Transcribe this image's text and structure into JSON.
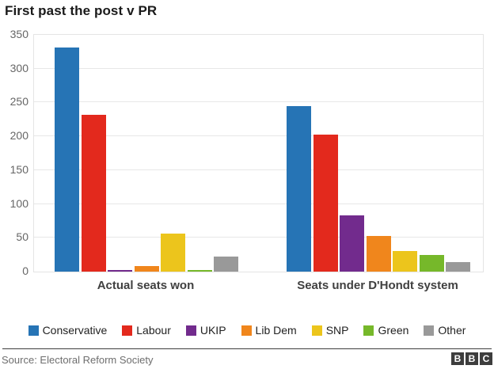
{
  "title": "First past the post v PR",
  "chart_data": {
    "type": "bar",
    "title": "First past the post v PR",
    "categories": [
      "Actual seats won",
      "Seats under D'Hondt system"
    ],
    "series": [
      {
        "name": "Conservative",
        "color": "#2674b5",
        "values": [
          331,
          245
        ]
      },
      {
        "name": "Labour",
        "color": "#e3291d",
        "values": [
          232,
          202
        ]
      },
      {
        "name": "UKIP",
        "color": "#722b8d",
        "values": [
          1,
          83
        ]
      },
      {
        "name": "Lib Dem",
        "color": "#f0861c",
        "values": [
          8,
          53
        ]
      },
      {
        "name": "SNP",
        "color": "#ecc51c",
        "values": [
          56,
          31
        ]
      },
      {
        "name": "Green",
        "color": "#76b82a",
        "values": [
          1,
          25
        ]
      },
      {
        "name": "Other",
        "color": "#999999",
        "values": [
          22,
          14
        ]
      }
    ],
    "ylim": [
      0,
      350
    ],
    "yticks": [
      0,
      50,
      100,
      150,
      200,
      250,
      300,
      350
    ],
    "grid": true,
    "legend_position": "bottom"
  },
  "footer": {
    "source": "Source: Electoral Reform Society",
    "logo_letters": [
      "B",
      "B",
      "C"
    ]
  },
  "colors": {
    "gridline": "#e7e7e7",
    "axis_text": "#666666",
    "category_text": "#404040",
    "divider": "#3d3d3d",
    "logo_block": "#3d3d3d"
  }
}
